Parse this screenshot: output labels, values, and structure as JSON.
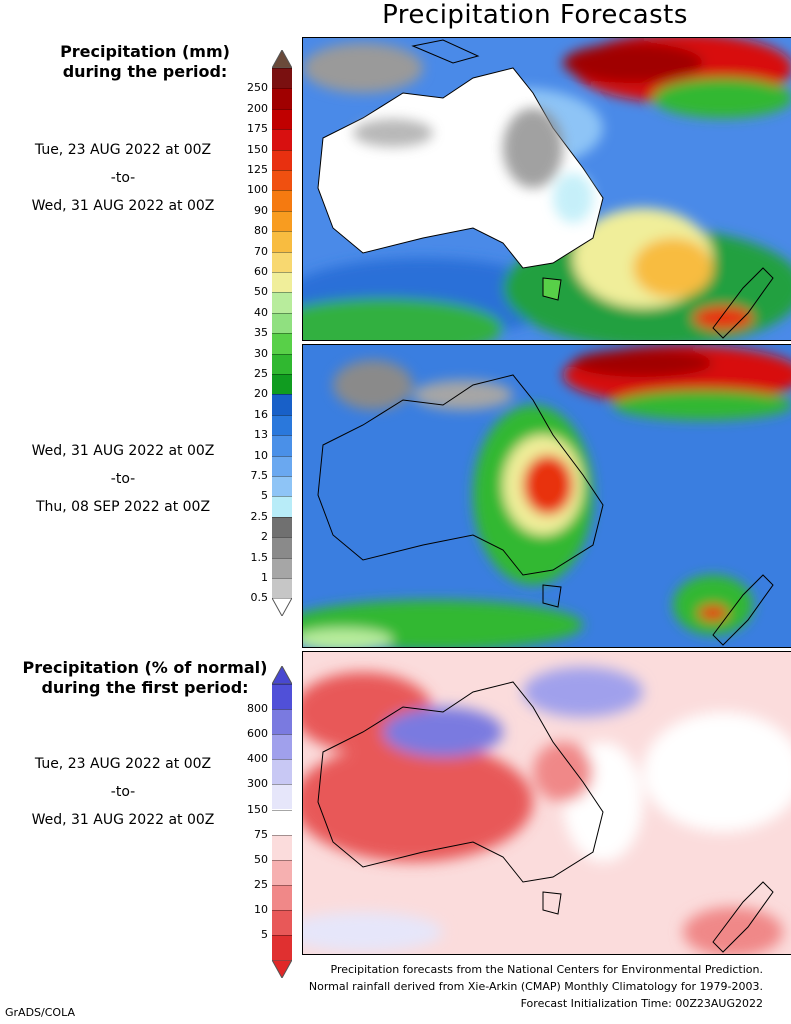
{
  "title": "Precipitation Forecasts",
  "section1": {
    "heading_line1": "Precipitation (mm)",
    "heading_line2": "during the period:",
    "period1": {
      "start": "Tue, 23 AUG 2022 at 00Z",
      "sep": "-to-",
      "end": "Wed, 31 AUG 2022 at 00Z"
    },
    "period2": {
      "start": "Wed, 31 AUG 2022 at 00Z",
      "sep": "-to-",
      "end": "Thu, 08 SEP 2022 at 00Z"
    },
    "colorbar": {
      "labels": [
        "250",
        "200",
        "175",
        "150",
        "125",
        "100",
        "90",
        "80",
        "70",
        "60",
        "50",
        "40",
        "35",
        "30",
        "25",
        "20",
        "16",
        "13",
        "10",
        "7.5",
        "5",
        "2.5",
        "2",
        "1.5",
        "1",
        "0.5"
      ],
      "colors": [
        "#7a1010",
        "#a00000",
        "#c00000",
        "#d81010",
        "#e83010",
        "#f05010",
        "#f57a10",
        "#f89c20",
        "#f8bc40",
        "#f8d870",
        "#f0ee9a",
        "#b8ec9c",
        "#90e080",
        "#58d048",
        "#30b830",
        "#109c20",
        "#1860c8",
        "#2a78dc",
        "#4a90e8",
        "#6aa8f0",
        "#8ec4f6",
        "#b8ecf8",
        "#707070",
        "#8a8a8a",
        "#a6a6a6",
        "#c6c6c6"
      ],
      "top_cap_color": "#6a4a3a"
    }
  },
  "section2": {
    "heading_line1": "Precipitation (% of normal)",
    "heading_line2": "during the first period:",
    "period": {
      "start": "Tue, 23 AUG 2022 at 00Z",
      "sep": "-to-",
      "end": "Wed, 31 AUG 2022 at 00Z"
    },
    "colorbar": {
      "labels": [
        "800",
        "600",
        "400",
        "300",
        "150",
        "75",
        "50",
        "25",
        "10",
        "5"
      ],
      "colors": [
        "#5050d8",
        "#7a7ae0",
        "#a0a0ec",
        "#c8c8f4",
        "#e6e6fa",
        "#ffffff",
        "#fbdcdc",
        "#f6b0b0",
        "#f08888",
        "#e85858",
        "#e03030"
      ],
      "top_cap_color": "#4848d0",
      "bottom_cap_color": "#e02828"
    }
  },
  "footer": {
    "line1": "Precipitation forecasts from the National Centers for Environmental Prediction.",
    "line2": "Normal rainfall derived from Xie-Arkin (CMAP) Monthly Climatology for 1979-2003.",
    "line3": "Forecast Initialization Time: 00Z23AUG2022"
  },
  "credit": "GrADS/COLA"
}
